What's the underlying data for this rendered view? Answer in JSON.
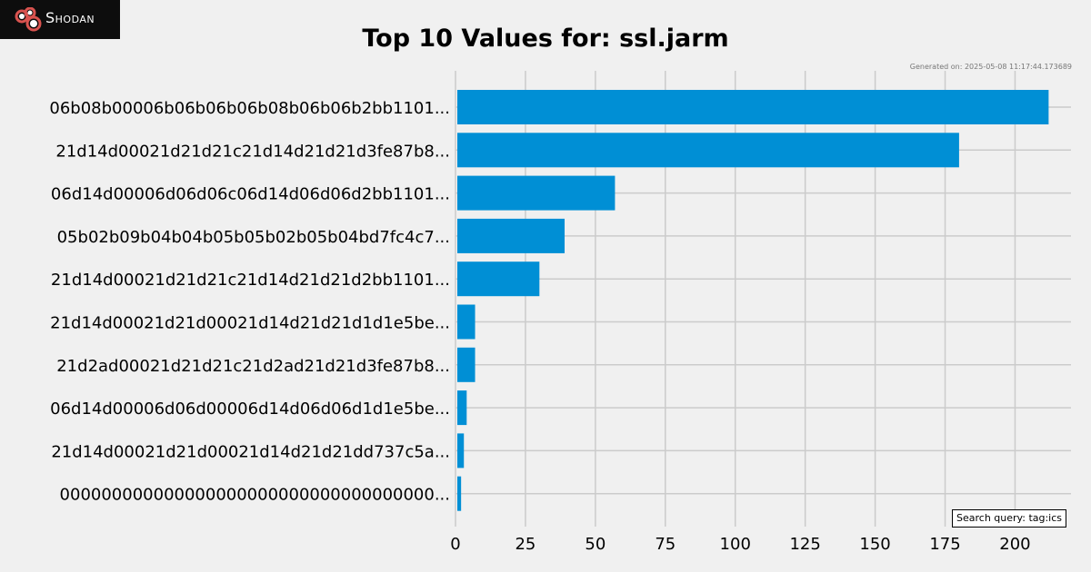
{
  "brand": {
    "name": "Shodan",
    "logo_icon": "shodan-logo-icon"
  },
  "generated_label": "Generated on: 2025-05-08 11:17:44.173689",
  "search_query_label": "Search query: tag:ics",
  "colors": {
    "background": "#f0f0f0",
    "bar": "#008fd5",
    "grid": "#cbcbcb",
    "logo_bg": "#0d0d0d",
    "logo_red": "#d9534f"
  },
  "chart_data": {
    "type": "bar",
    "orientation": "horizontal",
    "title": "Top 10 Values for: ssl.jarm",
    "xlabel": "",
    "ylabel": "",
    "categories": [
      "06b08b00006b06b06b06b08b06b06b2bb1101...",
      "21d14d00021d21d21c21d14d21d21d3fe87b8...",
      "06d14d00006d06d06c06d14d06d06d2bb1101...",
      "05b02b09b04b04b05b05b02b05b04bd7fc4c7...",
      "21d14d00021d21d21c21d14d21d21d2bb1101...",
      "21d14d00021d21d00021d14d21d21d1d1e5be...",
      "21d2ad00021d21d21c21d2ad21d21d3fe87b8...",
      "06d14d00006d06d00006d14d06d06d1d1e5be...",
      "21d14d00021d21d00021d14d21d21dd737c5a...",
      "000000000000000000000000000000000000..."
    ],
    "values": [
      212,
      180,
      57,
      39,
      30,
      7,
      7,
      4,
      3,
      2
    ],
    "xlim": [
      0,
      220
    ],
    "xticks": [
      0,
      25,
      50,
      75,
      100,
      125,
      150,
      175,
      200
    ],
    "grid": true,
    "legend": "none"
  }
}
